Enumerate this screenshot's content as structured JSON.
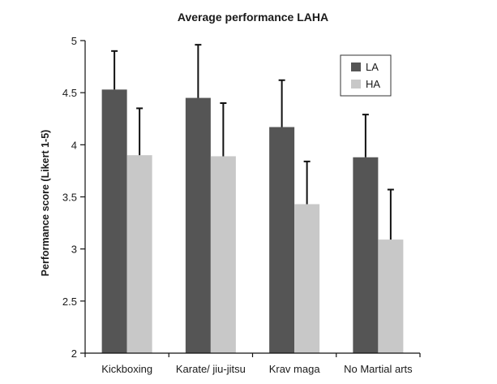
{
  "chart_data": {
    "type": "bar",
    "title": "Average performance LAHA",
    "xlabel": "",
    "ylabel": "Performance score (Likert 1-5)",
    "ylim": [
      2,
      5
    ],
    "yticks": [
      "2",
      "2.5",
      "3",
      "3.5",
      "4",
      "4.5",
      "5"
    ],
    "categories": [
      "Kickboxing",
      "Karate/ jiu-jitsu",
      "Krav maga",
      "No Martial arts"
    ],
    "series": [
      {
        "name": "LA",
        "color": "#555555",
        "values": [
          4.53,
          4.45,
          4.17,
          3.88
        ],
        "errors": [
          0.37,
          0.51,
          0.45,
          0.41
        ]
      },
      {
        "name": "HA",
        "color": "#c8c8c8",
        "values": [
          3.9,
          3.89,
          3.43,
          3.09
        ],
        "errors": [
          0.45,
          0.51,
          0.41,
          0.48
        ]
      }
    ],
    "legend_position": "top-right",
    "grid": false
  }
}
